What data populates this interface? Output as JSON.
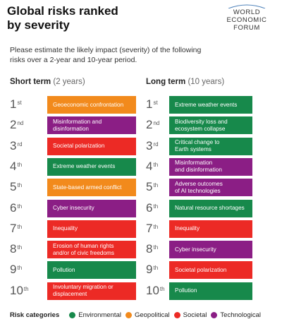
{
  "header": {
    "title": [
      "Global risks ranked",
      "by severity"
    ],
    "logo": [
      "WORLD",
      "ECONOMIC",
      "FORUM"
    ],
    "subtitle": [
      "Please estimate the likely impact (severity) of the following",
      "risks over a 2-year and 10-year period."
    ]
  },
  "legend": {
    "title": "Risk categories",
    "categories": [
      {
        "name": "Environmental",
        "color": "#17894b"
      },
      {
        "name": "Geopolitical",
        "color": "#f28a1c"
      },
      {
        "name": "Societal",
        "color": "#ec2a25"
      },
      {
        "name": "Technological",
        "color": "#8b1e85"
      }
    ]
  },
  "columns": [
    {
      "heading": "Short term",
      "period": "(2 years)",
      "items": [
        {
          "rank": "1",
          "suffix": "st",
          "label": [
            "Geoeconomic confrontation"
          ],
          "category": "Geopolitical"
        },
        {
          "rank": "2",
          "suffix": "nd",
          "label": [
            "Misinformation and",
            "disinformation"
          ],
          "category": "Technological"
        },
        {
          "rank": "3",
          "suffix": "rd",
          "label": [
            "Societal polarization"
          ],
          "category": "Societal"
        },
        {
          "rank": "4",
          "suffix": "th",
          "label": [
            "Extreme weather events"
          ],
          "category": "Environmental"
        },
        {
          "rank": "5",
          "suffix": "th",
          "label": [
            "State-based armed conflict"
          ],
          "category": "Geopolitical"
        },
        {
          "rank": "6",
          "suffix": "th",
          "label": [
            "Cyber insecurity"
          ],
          "category": "Technological"
        },
        {
          "rank": "7",
          "suffix": "th",
          "label": [
            "Inequality"
          ],
          "category": "Societal"
        },
        {
          "rank": "8",
          "suffix": "th",
          "label": [
            "Erosion of human rights",
            "and/or of civic freedoms"
          ],
          "category": "Societal"
        },
        {
          "rank": "9",
          "suffix": "th",
          "label": [
            "Pollution"
          ],
          "category": "Environmental"
        },
        {
          "rank": "10",
          "suffix": "th",
          "label": [
            "Involuntary migration or",
            "displacement"
          ],
          "category": "Societal"
        }
      ]
    },
    {
      "heading": "Long term",
      "period": "(10 years)",
      "items": [
        {
          "rank": "1",
          "suffix": "st",
          "label": [
            "Extreme weather events"
          ],
          "category": "Environmental"
        },
        {
          "rank": "2",
          "suffix": "nd",
          "label": [
            "Biodiversity loss and",
            "ecosystem collapse"
          ],
          "category": "Environmental"
        },
        {
          "rank": "3",
          "suffix": "rd",
          "label": [
            "Critical change to",
            "Earth systems"
          ],
          "category": "Environmental"
        },
        {
          "rank": "4",
          "suffix": "th",
          "label": [
            "Misinformation",
            "and disinformation"
          ],
          "category": "Technological"
        },
        {
          "rank": "5",
          "suffix": "th",
          "label": [
            "Adverse outcomes",
            "of AI technologies"
          ],
          "category": "Technological"
        },
        {
          "rank": "6",
          "suffix": "th",
          "label": [
            "Natural resource shortages"
          ],
          "category": "Environmental"
        },
        {
          "rank": "7",
          "suffix": "th",
          "label": [
            "Inequality"
          ],
          "category": "Societal"
        },
        {
          "rank": "8",
          "suffix": "th",
          "label": [
            "Cyber insecurity"
          ],
          "category": "Technological"
        },
        {
          "rank": "9",
          "suffix": "th",
          "label": [
            "Societal polarization"
          ],
          "category": "Societal"
        },
        {
          "rank": "10",
          "suffix": "th",
          "label": [
            "Pollution"
          ],
          "category": "Environmental"
        }
      ]
    }
  ]
}
